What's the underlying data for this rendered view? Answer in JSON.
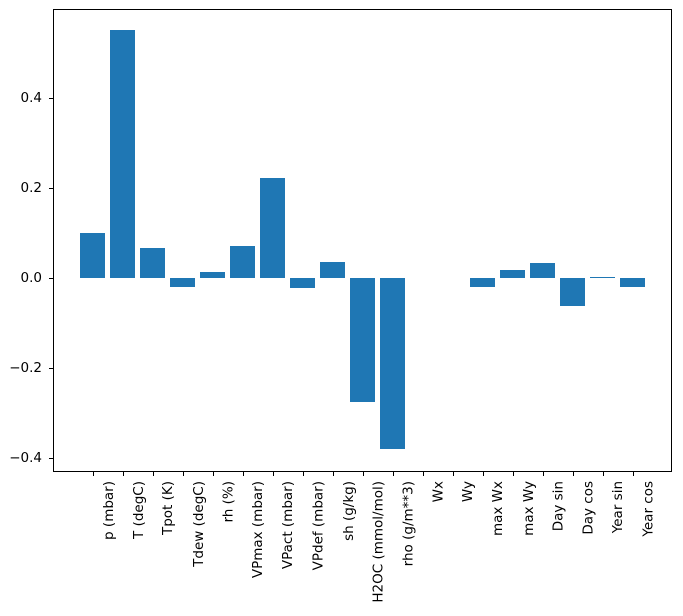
{
  "chart_data": {
    "type": "bar",
    "title": "",
    "xlabel": "",
    "ylabel": "",
    "categories": [
      "p (mbar)",
      "T (degC)",
      "Tpot (K)",
      "Tdew (degC)",
      "rh (%)",
      "VPmax (mbar)",
      "VPact (mbar)",
      "VPdef (mbar)",
      "sh (g/kg)",
      "H2OC (mmol/mol)",
      "rho (g/m**3)",
      "Wx",
      "Wy",
      "max Wx",
      "max Wy",
      "Day sin",
      "Day cos",
      "Year sin",
      "Year cos"
    ],
    "values": [
      0.1,
      0.551,
      0.066,
      -0.021,
      0.013,
      0.071,
      0.222,
      -0.022,
      0.036,
      -0.275,
      -0.381,
      0.0,
      0.0,
      -0.021,
      0.017,
      0.034,
      -0.062,
      0.003,
      -0.021
    ],
    "yticks": [
      0.4,
      0.2,
      0.0,
      -0.2,
      -0.4
    ],
    "ytick_labels": [
      "0.4",
      "0.2",
      "0.0",
      "−0.2",
      "−0.4"
    ],
    "ylim": [
      -0.43,
      0.6
    ],
    "bar_color": "#1f77b4",
    "grid": false,
    "legend": "none"
  }
}
